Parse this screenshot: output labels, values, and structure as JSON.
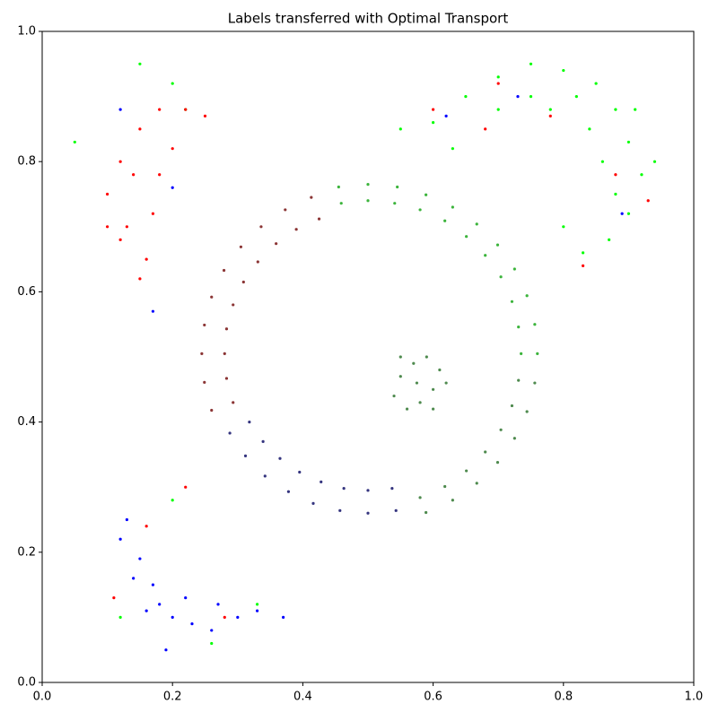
{
  "chart_data": {
    "type": "scatter",
    "title": "Labels transferred with Optimal Transport",
    "xlim": [
      0,
      1
    ],
    "ylim": [
      0,
      1
    ],
    "xticks": [
      {
        "value": 0,
        "label": "0.0"
      },
      0.2,
      0.4,
      0.6,
      0.8,
      {
        "value": 1,
        "label": "1.0"
      }
    ],
    "yticks": [
      {
        "value": 0,
        "label": "0.0"
      },
      0.2,
      0.4,
      0.6,
      0.8,
      {
        "value": 1,
        "label": "1.0"
      }
    ],
    "series": [
      {
        "color": "#8b3535",
        "x": [
          0.425,
          0.39,
          0.359,
          0.331,
          0.309,
          0.293,
          0.283,
          0.28,
          0.283,
          0.293,
          0.413,
          0.373,
          0.336,
          0.305,
          0.279,
          0.26,
          0.249,
          0.245,
          0.249,
          0.26
        ],
        "values": [
          0.712,
          0.696,
          0.674,
          0.646,
          0.615,
          0.58,
          0.543,
          0.505,
          0.467,
          0.43,
          0.745,
          0.726,
          0.7,
          0.669,
          0.633,
          0.592,
          0.549,
          0.505,
          0.461,
          0.418
        ]
      },
      {
        "color": "#35357f",
        "x": [
          0.318,
          0.339,
          0.365,
          0.395,
          0.428,
          0.463,
          0.5,
          0.537,
          0.288,
          0.312,
          0.342,
          0.378,
          0.416,
          0.457,
          0.5,
          0.543
        ],
        "values": [
          0.4,
          0.37,
          0.344,
          0.323,
          0.308,
          0.298,
          0.295,
          0.298,
          0.383,
          0.348,
          0.317,
          0.293,
          0.275,
          0.264,
          0.26,
          0.264
        ]
      },
      {
        "color": "#4e8a4e",
        "x": [
          0.58,
          0.618,
          0.651,
          0.68,
          0.704,
          0.721,
          0.731,
          0.589,
          0.63,
          0.667,
          0.699,
          0.725,
          0.744,
          0.756,
          0.575,
          0.55,
          0.6,
          0.57,
          0.58,
          0.54,
          0.61,
          0.59,
          0.56,
          0.62,
          0.55,
          0.6
        ],
        "values": [
          0.284,
          0.301,
          0.325,
          0.354,
          0.388,
          0.425,
          0.464,
          0.261,
          0.28,
          0.306,
          0.338,
          0.375,
          0.416,
          0.46,
          0.46,
          0.47,
          0.45,
          0.49,
          0.43,
          0.44,
          0.48,
          0.5,
          0.42,
          0.46,
          0.5,
          0.42
        ]
      },
      {
        "color": "#3cb43c",
        "x": [
          0.735,
          0.731,
          0.721,
          0.704,
          0.68,
          0.651,
          0.618,
          0.58,
          0.541,
          0.5,
          0.459,
          0.76,
          0.756,
          0.744,
          0.725,
          0.699,
          0.667,
          0.63,
          0.589,
          0.545,
          0.5,
          0.455
        ],
        "values": [
          0.505,
          0.546,
          0.585,
          0.623,
          0.656,
          0.685,
          0.709,
          0.726,
          0.736,
          0.74,
          0.736,
          0.505,
          0.55,
          0.594,
          0.635,
          0.672,
          0.704,
          0.73,
          0.749,
          0.761,
          0.765,
          0.761
        ]
      },
      {
        "color": "#00ff00",
        "x": [
          0.6,
          0.65,
          0.7,
          0.75,
          0.8,
          0.85,
          0.88,
          0.9,
          0.92,
          0.9,
          0.87,
          0.83,
          0.7,
          0.78,
          0.84,
          0.86,
          0.88,
          0.55,
          0.63,
          0.94,
          0.8,
          0.75,
          0.82,
          0.91,
          0.2,
          0.22,
          0.05,
          0.15,
          0.2,
          0.12,
          0.26,
          0.33
        ],
        "values": [
          0.86,
          0.9,
          0.93,
          0.95,
          0.94,
          0.92,
          0.88,
          0.83,
          0.78,
          0.72,
          0.68,
          0.66,
          0.88,
          0.88,
          0.85,
          0.8,
          0.75,
          0.85,
          0.82,
          0.8,
          0.7,
          0.9,
          0.9,
          0.88,
          0.92,
          0.88,
          0.83,
          0.95,
          0.28,
          0.1,
          0.06,
          0.12
        ]
      },
      {
        "color": "#ff0000",
        "x": [
          0.12,
          0.15,
          0.18,
          0.22,
          0.1,
          0.13,
          0.16,
          0.15,
          0.18,
          0.12,
          0.2,
          0.25,
          0.14,
          0.17,
          0.1,
          0.6,
          0.68,
          0.78,
          0.88,
          0.93,
          0.83,
          0.7,
          0.16,
          0.28,
          0.11,
          0.22
        ],
        "values": [
          0.8,
          0.85,
          0.88,
          0.88,
          0.75,
          0.7,
          0.65,
          0.62,
          0.78,
          0.68,
          0.82,
          0.87,
          0.78,
          0.72,
          0.7,
          0.88,
          0.85,
          0.87,
          0.78,
          0.74,
          0.64,
          0.92,
          0.24,
          0.1,
          0.13,
          0.3
        ]
      },
      {
        "color": "#0000ff",
        "x": [
          0.12,
          0.15,
          0.17,
          0.18,
          0.2,
          0.23,
          0.26,
          0.3,
          0.33,
          0.14,
          0.16,
          0.22,
          0.27,
          0.37,
          0.19,
          0.13,
          0.73,
          0.62,
          0.89,
          0.12,
          0.2,
          0.17
        ],
        "values": [
          0.22,
          0.19,
          0.15,
          0.12,
          0.1,
          0.09,
          0.08,
          0.1,
          0.11,
          0.16,
          0.11,
          0.13,
          0.12,
          0.1,
          0.05,
          0.25,
          0.9,
          0.87,
          0.72,
          0.88,
          0.76,
          0.57
        ]
      }
    ]
  }
}
